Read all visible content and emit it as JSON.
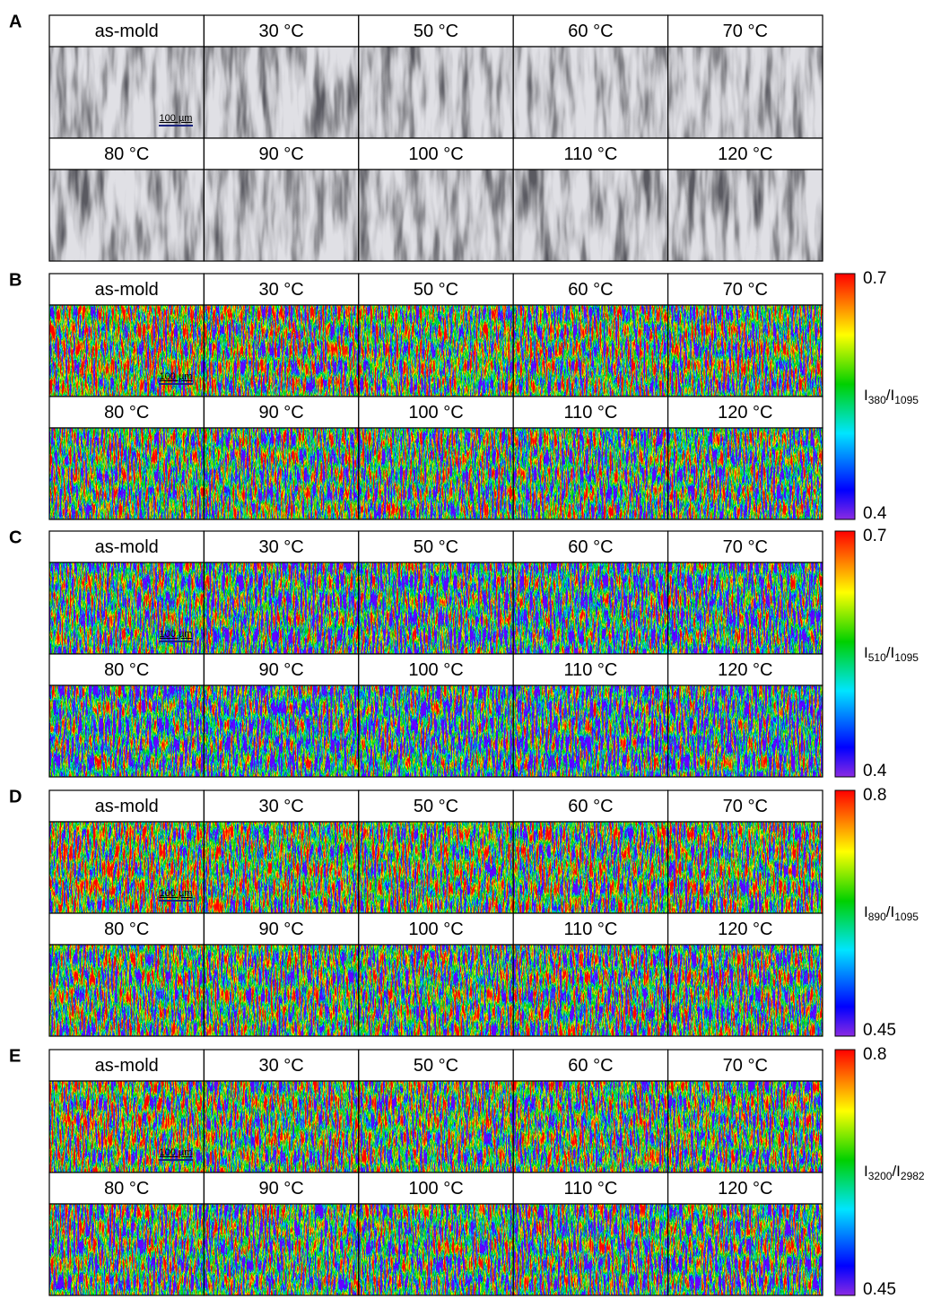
{
  "panels": [
    {
      "label": "A",
      "titles": [
        "as-mold",
        "30 °C",
        "50 °C",
        "60 °C",
        "70 °C",
        "80 °C",
        "90 °C",
        "100 °C",
        "110 °C",
        "120 °C"
      ],
      "scale_bar": "100 µm"
    },
    {
      "label": "B",
      "titles": [
        "as-mold",
        "30 °C",
        "50 °C",
        "60 °C",
        "70 °C",
        "80 °C",
        "90 °C",
        "100 °C",
        "110 °C",
        "120 °C"
      ],
      "scale_bar": "100 µm",
      "colorbar": {
        "max": 0.7,
        "min": 0.4,
        "label": {
          "symbol": "I",
          "sub": "380",
          "separator": "/",
          "symbol2": "I",
          "sub2": "1095"
        }
      }
    },
    {
      "label": "C",
      "titles": [
        "as-mold",
        "30 °C",
        "50 °C",
        "60 °C",
        "70 °C",
        "80 °C",
        "90 °C",
        "100 °C",
        "110 °C",
        "120 °C"
      ],
      "scale_bar": "100 µm",
      "colorbar": {
        "max": 0.7,
        "min": 0.4,
        "label": {
          "symbol": "I",
          "sub": "510",
          "separator": "/",
          "symbol2": "I",
          "sub2": "1095"
        }
      }
    },
    {
      "label": "D",
      "titles": [
        "as-mold",
        "30 °C",
        "50 °C",
        "60 °C",
        "70 °C",
        "80 °C",
        "90 °C",
        "100 °C",
        "110 °C",
        "120 °C"
      ],
      "scale_bar": "100 µm",
      "colorbar": {
        "max": 0.8,
        "min": 0.45,
        "label": {
          "symbol": "I",
          "sub": "890",
          "separator": "/",
          "symbol2": "I",
          "sub2": "1095"
        }
      }
    },
    {
      "label": "E",
      "titles": [
        "as-mold",
        "30 °C",
        "50 °C",
        "60 °C",
        "70 °C",
        "80 °C",
        "90 °C",
        "100 °C",
        "110 °C",
        "120 °C"
      ],
      "scale_bar": "100 µm",
      "colorbar": {
        "max": 0.8,
        "min": 0.45,
        "label": {
          "symbol": "I",
          "sub": "3200",
          "separator": "/",
          "symbol2": "I",
          "sub2": "2982"
        }
      }
    }
  ]
}
